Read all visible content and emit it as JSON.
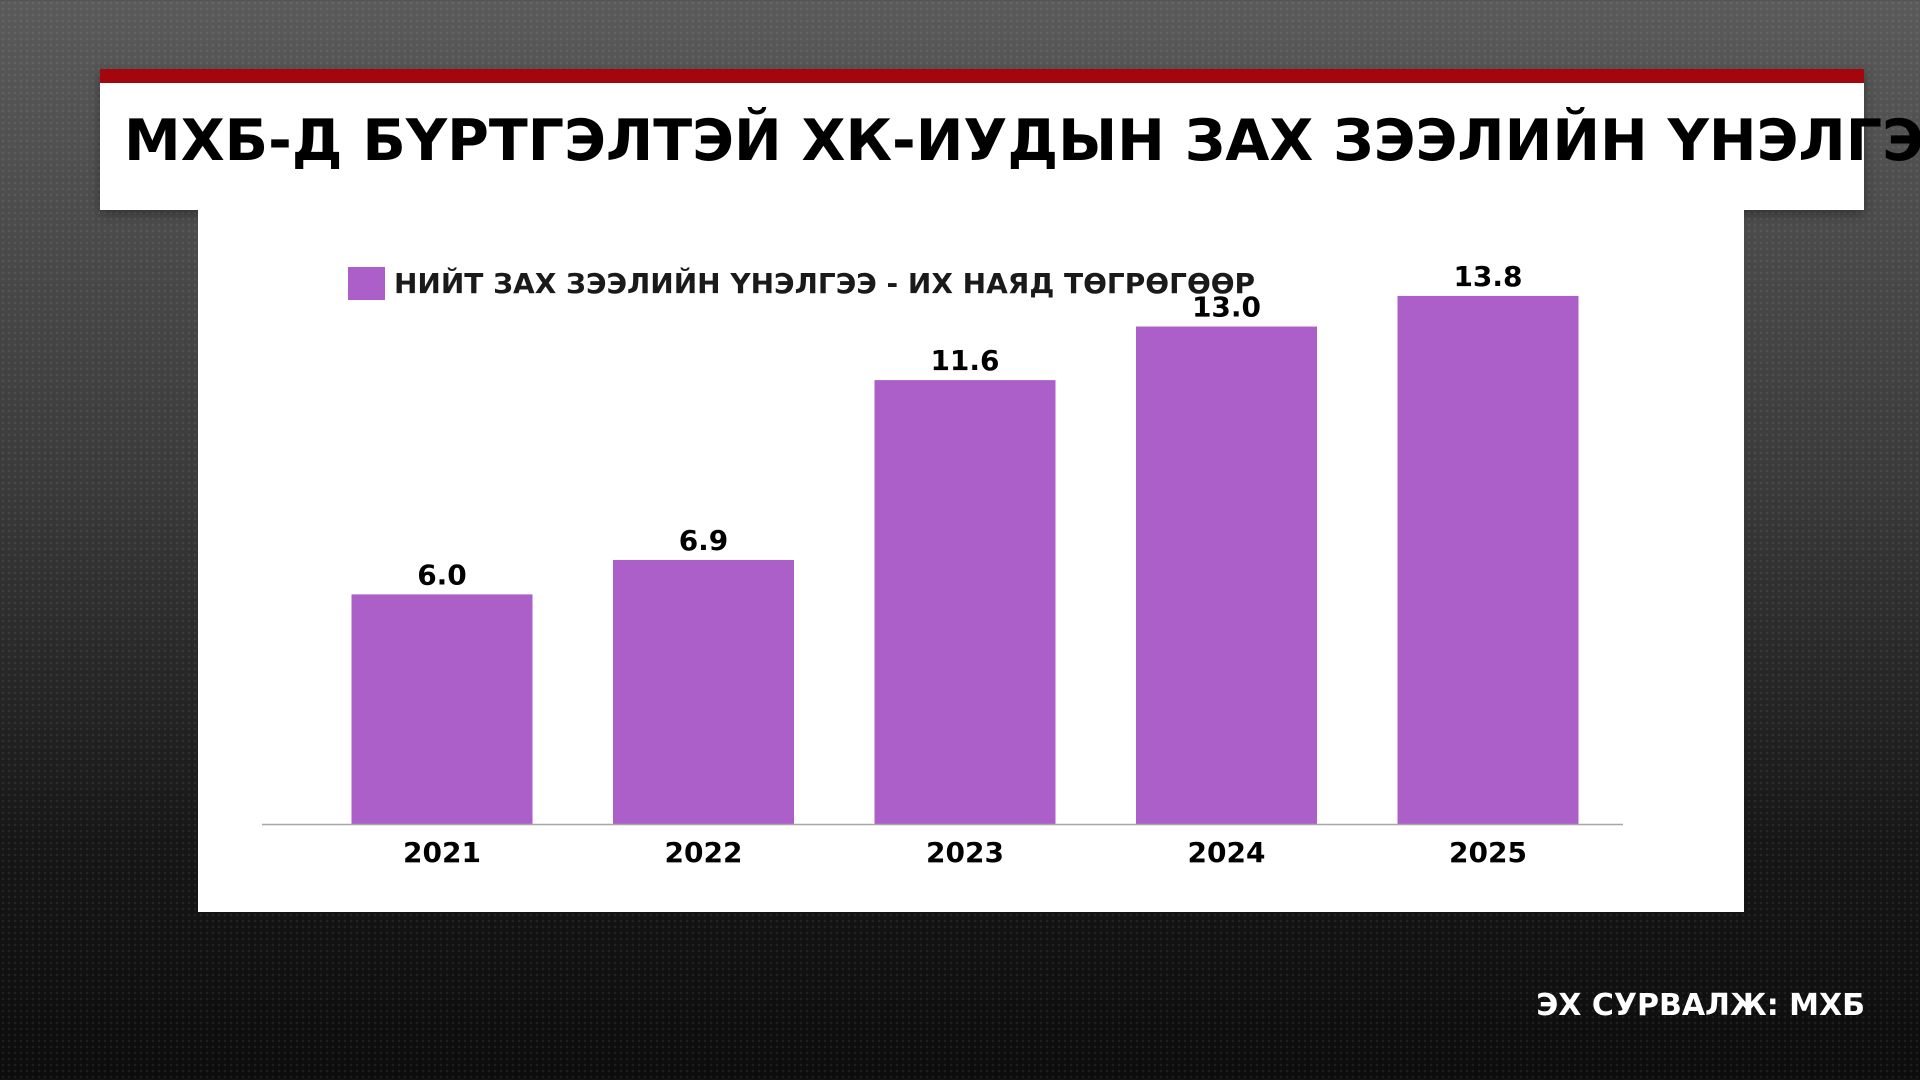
{
  "header": {
    "title": "МХБ-Д БҮРТГЭЛТЭЙ ХК-ИУДЫН ЗАХ ЗЭЭЛИЙН ҮНЭЛГЭЭ",
    "accent_color": "#a3070d"
  },
  "footer": {
    "source": "ЭХ СУРВАЛЖ: МХБ"
  },
  "chart_data": {
    "type": "bar",
    "categories": [
      "2021",
      "2022",
      "2023",
      "2024",
      "2025"
    ],
    "series": [
      {
        "name": "НИЙТ ЗАХ ЗЭЭЛИЙН ҮНЭЛГЭЭ - ИХ НАЯД ТӨГРӨГӨӨР",
        "values": [
          6.0,
          6.9,
          11.6,
          13.0,
          13.8
        ],
        "color": "#ad5fc9"
      }
    ],
    "data_labels": [
      "6.0",
      "6.9",
      "11.6",
      "13.0",
      "13.8"
    ],
    "ylim": [
      0,
      15
    ],
    "grid": false,
    "legend_position": "top-left"
  }
}
